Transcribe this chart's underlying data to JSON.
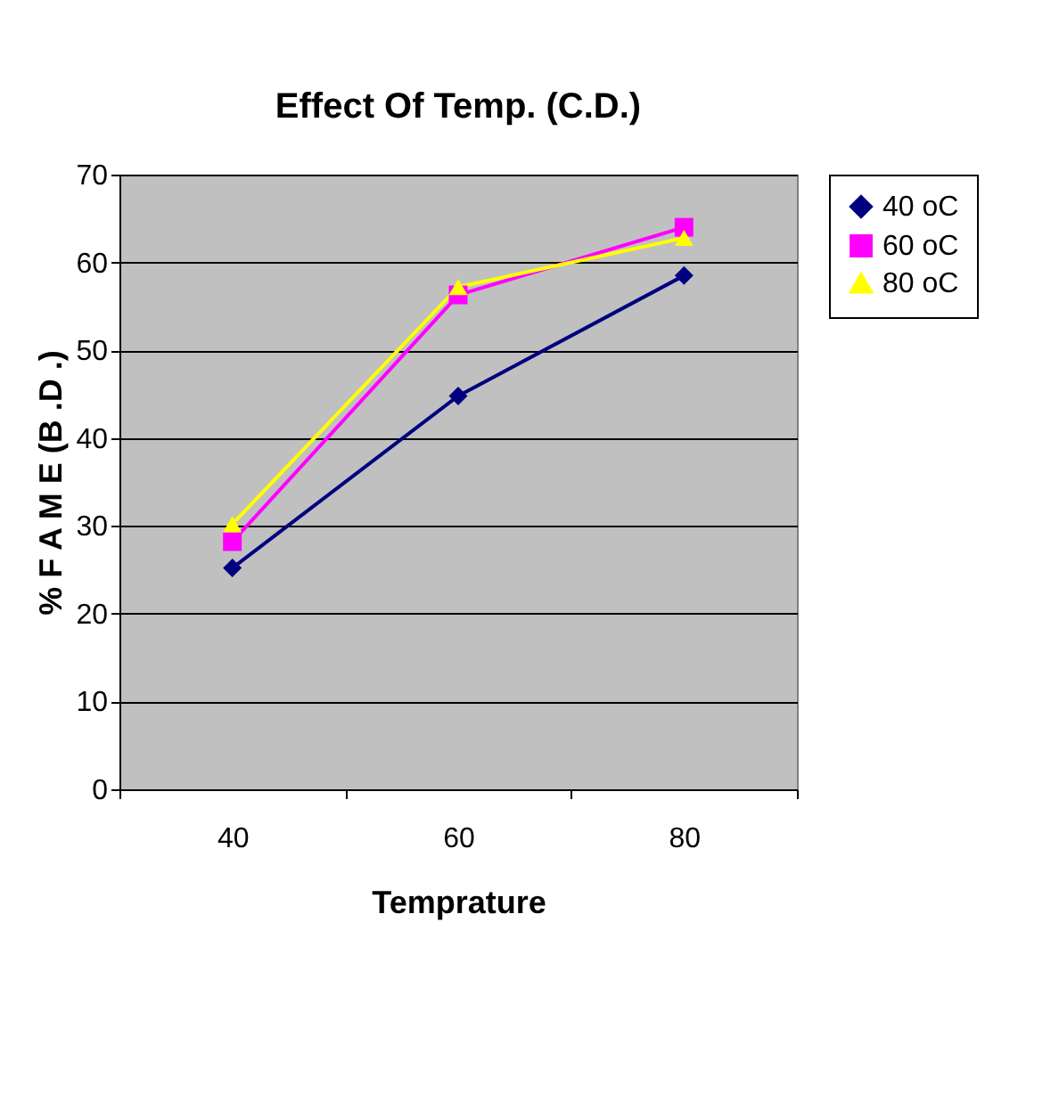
{
  "chart_data": {
    "type": "line",
    "title": "Effect Of Temp. (C.D.)",
    "xlabel": "Temprature",
    "ylabel": "% F A M E (B .D .)",
    "categories": [
      "40",
      "60",
      "80"
    ],
    "series": [
      {
        "name": "40 oC",
        "color": "#000080",
        "marker": "diamond",
        "values": [
          25.2,
          44.8,
          58.5
        ]
      },
      {
        "name": "60 oC",
        "color": "#ff00ff",
        "marker": "square",
        "values": [
          28.2,
          56.3,
          64.0
        ]
      },
      {
        "name": "80 oC",
        "color": "#ffff00",
        "marker": "triangle",
        "values": [
          30.2,
          57.2,
          62.8
        ]
      }
    ],
    "ylim": [
      0,
      70
    ],
    "yticks": [
      0,
      10,
      20,
      30,
      40,
      50,
      60,
      70
    ],
    "grid": "y",
    "legend": "right",
    "line_style": "solid"
  }
}
